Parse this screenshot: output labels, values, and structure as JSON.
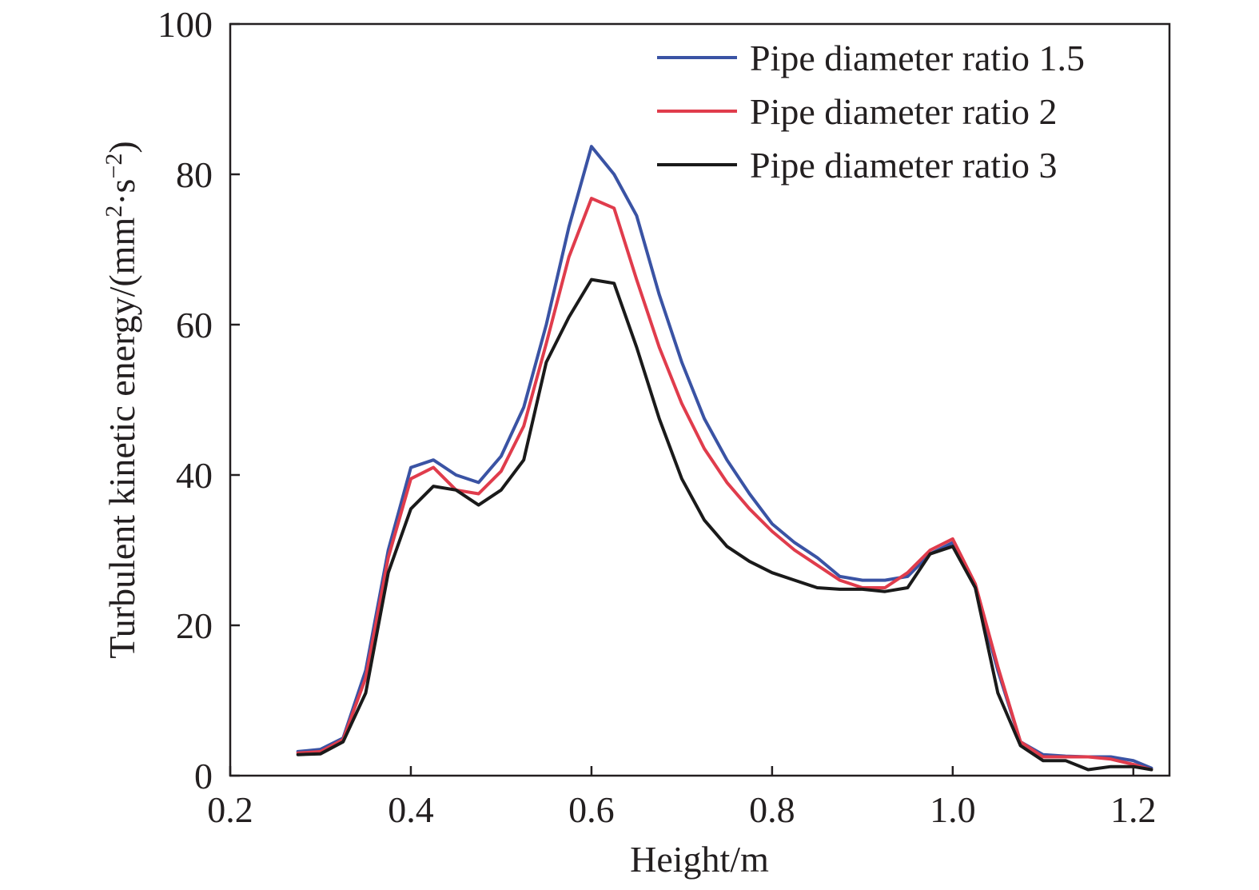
{
  "chart_data": {
    "type": "line",
    "title": "",
    "xlabel": "Height/m",
    "ylabel_parts": {
      "main": "Turbulent kinetic energy/(mm",
      "sup1": "2",
      "mid": "·s",
      "sup2": "−2",
      "end": ")"
    },
    "xlim": [
      0.2,
      1.24
    ],
    "ylim": [
      0,
      100
    ],
    "xticks": [
      0.2,
      0.4,
      0.6,
      0.8,
      1.0,
      1.2
    ],
    "xtick_labels": [
      "0.2",
      "0.4",
      "0.6",
      "0.8",
      "1.0",
      "1.2"
    ],
    "yticks": [
      0,
      20,
      40,
      60,
      80,
      100
    ],
    "ytick_labels": [
      "0",
      "20",
      "40",
      "60",
      "80",
      "100"
    ],
    "grid": false,
    "legend_position": "top-right",
    "series": [
      {
        "name": "Pipe diameter ratio 1.5",
        "color": "#3a53a4",
        "x": [
          0.275,
          0.3,
          0.325,
          0.35,
          0.375,
          0.4,
          0.425,
          0.45,
          0.475,
          0.5,
          0.525,
          0.55,
          0.575,
          0.6,
          0.625,
          0.65,
          0.675,
          0.7,
          0.725,
          0.75,
          0.775,
          0.8,
          0.825,
          0.85,
          0.875,
          0.9,
          0.925,
          0.95,
          0.975,
          1.0,
          1.025,
          1.05,
          1.075,
          1.1,
          1.125,
          1.15,
          1.175,
          1.2,
          1.22
        ],
        "y": [
          3.2,
          3.5,
          5.0,
          14.0,
          30.0,
          41.0,
          42.0,
          40.0,
          39.0,
          42.5,
          49.0,
          60.0,
          73.0,
          83.7,
          80.0,
          74.5,
          64.0,
          55.0,
          47.5,
          42.0,
          37.5,
          33.5,
          31.0,
          29.0,
          26.5,
          26.0,
          26.0,
          26.5,
          29.5,
          31.0,
          25.0,
          14.0,
          4.5,
          2.8,
          2.6,
          2.5,
          2.5,
          2.0,
          1.0
        ]
      },
      {
        "name": "Pipe diameter ratio 2",
        "color": "#e03c4c",
        "x": [
          0.275,
          0.3,
          0.325,
          0.35,
          0.375,
          0.4,
          0.425,
          0.45,
          0.475,
          0.5,
          0.525,
          0.55,
          0.575,
          0.6,
          0.625,
          0.65,
          0.675,
          0.7,
          0.725,
          0.75,
          0.775,
          0.8,
          0.825,
          0.85,
          0.875,
          0.9,
          0.925,
          0.95,
          0.975,
          1.0,
          1.025,
          1.05,
          1.075,
          1.1,
          1.125,
          1.15,
          1.175,
          1.2,
          1.22
        ],
        "y": [
          3.0,
          3.2,
          4.8,
          13.0,
          29.0,
          39.5,
          41.0,
          38.0,
          37.5,
          40.5,
          46.5,
          57.5,
          69.0,
          76.8,
          75.5,
          66.0,
          57.0,
          49.5,
          43.5,
          39.0,
          35.5,
          32.5,
          30.0,
          28.0,
          26.0,
          25.0,
          25.0,
          27.0,
          30.0,
          31.5,
          25.5,
          14.5,
          4.5,
          2.5,
          2.5,
          2.5,
          2.2,
          1.5,
          0.8
        ]
      },
      {
        "name": "Pipe diameter ratio 3",
        "color": "#1a1a1a",
        "x": [
          0.275,
          0.3,
          0.325,
          0.35,
          0.375,
          0.4,
          0.425,
          0.45,
          0.475,
          0.5,
          0.525,
          0.55,
          0.575,
          0.6,
          0.625,
          0.65,
          0.675,
          0.7,
          0.725,
          0.75,
          0.775,
          0.8,
          0.825,
          0.85,
          0.875,
          0.9,
          0.925,
          0.95,
          0.975,
          1.0,
          1.025,
          1.05,
          1.075,
          1.1,
          1.125,
          1.15,
          1.175,
          1.2,
          1.22
        ],
        "y": [
          2.8,
          2.9,
          4.5,
          11.0,
          27.0,
          35.5,
          38.5,
          38.0,
          36.0,
          38.0,
          42.0,
          55.0,
          61.0,
          66.0,
          65.5,
          57.0,
          47.5,
          39.5,
          34.0,
          30.5,
          28.5,
          27.0,
          26.0,
          25.0,
          24.8,
          24.8,
          24.5,
          25.0,
          29.5,
          30.5,
          25.0,
          11.0,
          4.0,
          2.0,
          2.0,
          0.8,
          1.2,
          1.2,
          0.8
        ]
      }
    ]
  }
}
